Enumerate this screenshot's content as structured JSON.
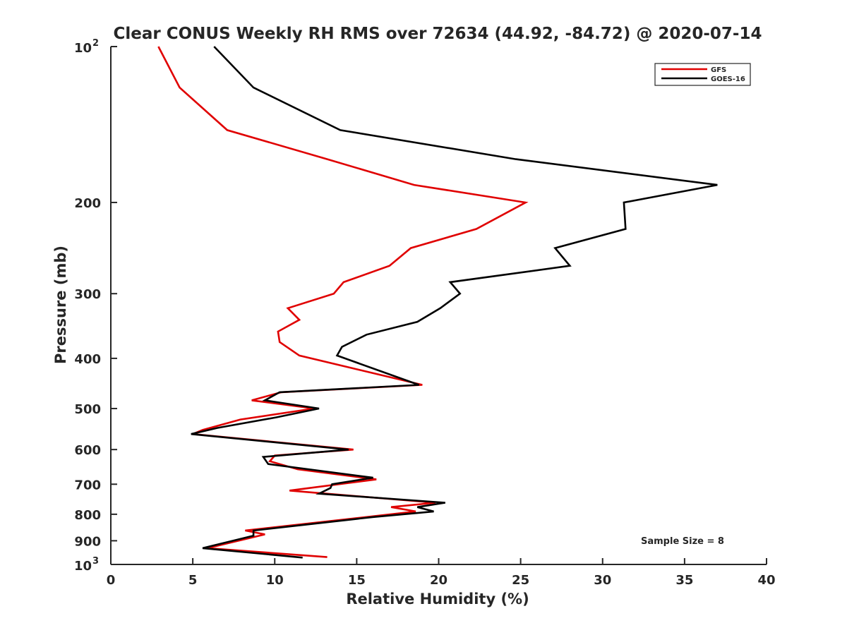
{
  "chart_data": {
    "type": "line",
    "title": "Clear CONUS Weekly RH RMS over 72634 (44.92, -84.72) @ 2020-07-14",
    "xlabel": "Relative Humidity (%)",
    "ylabel": "Pressure (mb)",
    "xlim": [
      0,
      40
    ],
    "ylim": [
      100,
      1000
    ],
    "y_scale": "log",
    "y_reversed": true,
    "x_ticks": [
      0,
      5,
      10,
      15,
      20,
      25,
      30,
      35,
      40
    ],
    "x_tick_labels": [
      "0",
      "5",
      "10",
      "15",
      "20",
      "25",
      "30",
      "35",
      "40"
    ],
    "y_ticks": [
      200,
      300,
      400,
      500,
      600,
      700,
      800,
      900
    ],
    "y_tick_labels": [
      "200",
      "300",
      "400",
      "500",
      "600",
      "700",
      "800",
      "900"
    ],
    "y_tick_top": {
      "base": "10",
      "exp": "2"
    },
    "y_tick_bottom": {
      "base": "10",
      "exp": "3"
    },
    "legend_position": "top-right",
    "annotation": "Sample Size = 8",
    "series": [
      {
        "name": "GFS",
        "color": "#e00000",
        "x": [
          2.9,
          4.2,
          7.1,
          13.2,
          18.5,
          25.3,
          22.3,
          18.3,
          17.0,
          14.2,
          13.6,
          10.8,
          11.5,
          10.2,
          10.3,
          11.5,
          19.0,
          10.4,
          8.6,
          12.4,
          7.9,
          5.6,
          5.0,
          14.8,
          10.0,
          9.7,
          11.4,
          16.2,
          10.9,
          19.8,
          17.1,
          18.6,
          15.6,
          8.2,
          9.4,
          5.9,
          13.2
        ],
        "y": [
          100,
          120,
          145,
          165,
          185,
          200,
          225,
          245,
          265,
          285,
          300,
          320,
          337,
          355,
          372,
          395,
          450,
          465,
          482,
          500,
          525,
          550,
          560,
          600,
          616,
          632,
          655,
          685,
          720,
          760,
          775,
          790,
          810,
          860,
          875,
          930,
          968
        ]
      },
      {
        "name": "GOES-16",
        "color": "#000000",
        "x": [
          6.3,
          8.7,
          14.0,
          24.7,
          37.0,
          31.3,
          31.4,
          27.1,
          28.0,
          20.7,
          21.3,
          20.1,
          18.7,
          15.6,
          14.1,
          13.8,
          18.8,
          10.3,
          9.4,
          12.7,
          10.1,
          6.5,
          4.9,
          14.5,
          9.3,
          9.6,
          16.0,
          13.5,
          13.4,
          12.7,
          20.4,
          18.7,
          19.7,
          16.0,
          8.7,
          8.7,
          5.6,
          11.7
        ],
        "y": [
          100,
          120,
          145,
          165,
          185,
          200,
          225,
          245,
          265,
          285,
          300,
          320,
          340,
          360,
          380,
          395,
          450,
          465,
          482,
          500,
          520,
          545,
          560,
          600,
          620,
          640,
          680,
          700,
          712,
          730,
          760,
          775,
          790,
          810,
          860,
          880,
          930,
          970
        ]
      }
    ]
  }
}
